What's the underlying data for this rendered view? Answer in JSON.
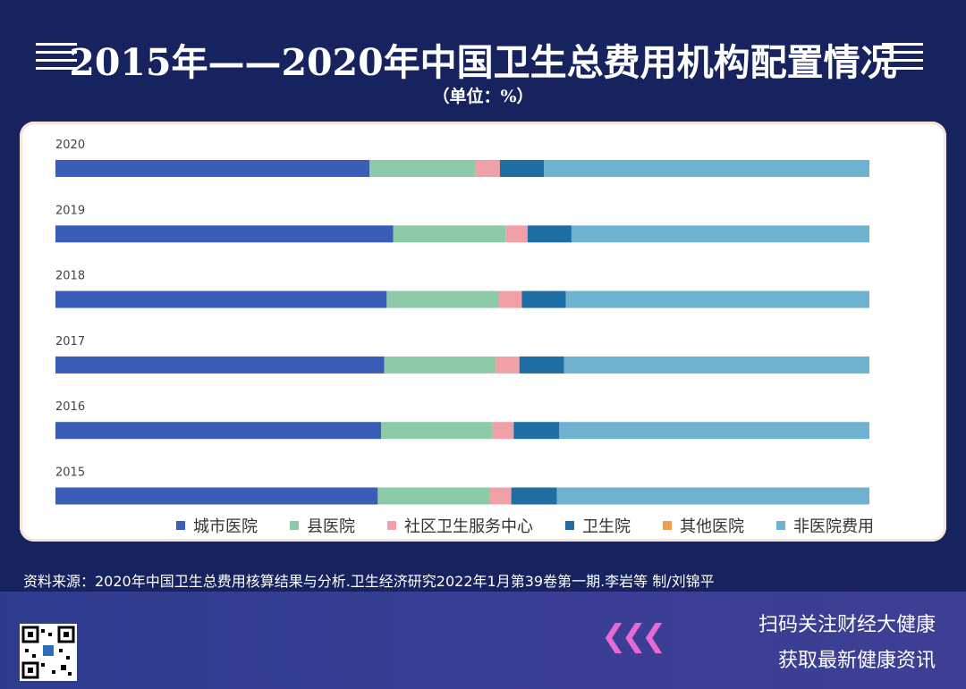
{
  "header": {
    "title": "2015年——2020年中国卫生总费用机构配置情况",
    "unit": "（单位：%）"
  },
  "chart_data": {
    "type": "bar",
    "orientation": "horizontal",
    "stacked": "100%",
    "categories": [
      "2020",
      "2019",
      "2018",
      "2017",
      "2016",
      "2015"
    ],
    "series": [
      {
        "name": "城市医院",
        "color": "#3a5eb7",
        "values": [
          38.6,
          41.5,
          40.7,
          40.4,
          40.0,
          39.6
        ]
      },
      {
        "name": "县医院",
        "color": "#8ccaa8",
        "values": [
          13.0,
          13.8,
          13.8,
          13.7,
          13.7,
          13.8
        ]
      },
      {
        "name": "社区卫生服务中心",
        "color": "#f0a0a6",
        "values": [
          3.0,
          2.7,
          2.8,
          2.9,
          2.6,
          2.6
        ]
      },
      {
        "name": "卫生院",
        "color": "#1f6ea3",
        "values": [
          5.4,
          5.4,
          5.4,
          5.5,
          5.6,
          5.6
        ]
      },
      {
        "name": "其他医院",
        "color": "#f29c52",
        "values": [
          0,
          0,
          0,
          0,
          0,
          0
        ]
      },
      {
        "name": "非医院费用",
        "color": "#6fb2cf",
        "values": [
          40.0,
          36.6,
          37.3,
          37.5,
          38.1,
          38.4
        ]
      }
    ],
    "legend_position": "bottom",
    "grid": false
  },
  "source": "资料来源：2020年中国卫生总费用核算结果与分析.卫生经济研究2022年1月第39卷第一期.李岩等 制/刘锦平",
  "footer": {
    "cta_line1": "扫码关注财经大健康",
    "cta_line2": "获取最新健康资讯"
  },
  "icons": [
    "qr-code-icon",
    "chevron-left-arrows-icon",
    "title-lines-icon"
  ]
}
